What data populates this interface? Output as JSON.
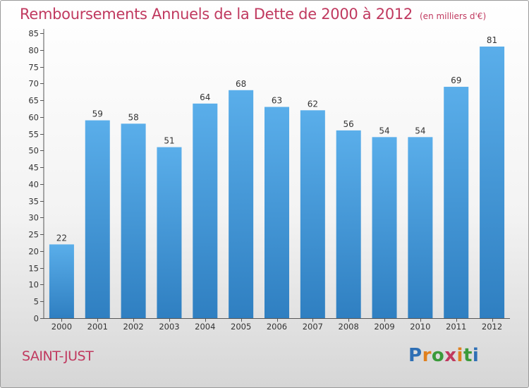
{
  "title": "Remboursements Annuels de la Dette de 2000 à 2012",
  "subtitle": "(en milliers d'€)",
  "commune": "SAINT-JUST",
  "logo": {
    "letters": [
      "P",
      "r",
      "o",
      "x",
      "i",
      "t",
      "i"
    ],
    "colors": [
      "#2e6fb5",
      "#e0801e",
      "#3a9a3a",
      "#c0395f",
      "#e0801e",
      "#3a9a3a",
      "#2e6fb5"
    ]
  },
  "colors": {
    "bar_top": "#5aaeea",
    "bar_bottom": "#2f7fc1",
    "title": "#c0395f"
  },
  "chart_data": {
    "type": "bar",
    "categories": [
      "2000",
      "2001",
      "2002",
      "2003",
      "2004",
      "2005",
      "2006",
      "2007",
      "2008",
      "2009",
      "2010",
      "2011",
      "2012"
    ],
    "values": [
      22,
      59,
      58,
      51,
      64,
      68,
      63,
      62,
      56,
      54,
      54,
      69,
      81
    ],
    "ylim": [
      0,
      85
    ],
    "yticks": [
      0,
      5,
      10,
      15,
      20,
      25,
      30,
      35,
      40,
      45,
      50,
      55,
      60,
      65,
      70,
      75,
      80,
      85
    ],
    "grid": false,
    "data_labels": true
  }
}
